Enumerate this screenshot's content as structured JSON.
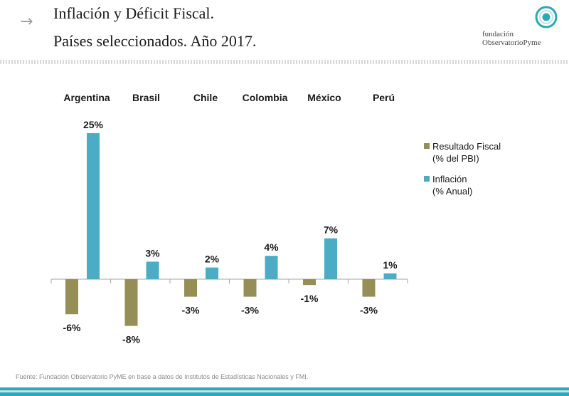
{
  "header": {
    "title_line1": "Inflación y Déficit Fiscal.",
    "title_line2": "Países seleccionados. Año 2017.",
    "arrow_icon": "right-arrow-icon",
    "logo_line1": "fundación",
    "logo_line2": "ObservatorioPyme"
  },
  "colors": {
    "fiscal": "#958e56",
    "inflation": "#4bacc6",
    "accent": "#2ca9b4"
  },
  "chart_data": {
    "type": "bar",
    "title": "",
    "xlabel": "",
    "ylabel": "",
    "categories": [
      "Argentina",
      "Brasil",
      "Chile",
      "Colombia",
      "México",
      "Perú"
    ],
    "series": [
      {
        "name": "Resultado Fiscal (% del PBI)",
        "legend_line1": "Resultado Fiscal",
        "legend_line2": "(% del PBI)",
        "values": [
          -6,
          -8,
          -3,
          -3,
          -1,
          -3
        ],
        "labels": [
          "-6%",
          "-8%",
          "-3%",
          "-3%",
          "-1%",
          "-3%"
        ]
      },
      {
        "name": "Inflación (% Anual)",
        "legend_line1": "Inflación",
        "legend_line2": "(%  Anual)",
        "values": [
          25,
          3,
          2,
          4,
          7,
          1
        ],
        "labels": [
          "25%",
          "3%",
          "2%",
          "4%",
          "7%",
          "1%"
        ]
      }
    ],
    "ylim": [
      -8,
      25
    ],
    "grid": false,
    "legend_position": "right"
  },
  "source": "Fuente:  Fundación Observatorio PyME en base a datos de Institutos de Estadísticas Nacionales y FMI."
}
